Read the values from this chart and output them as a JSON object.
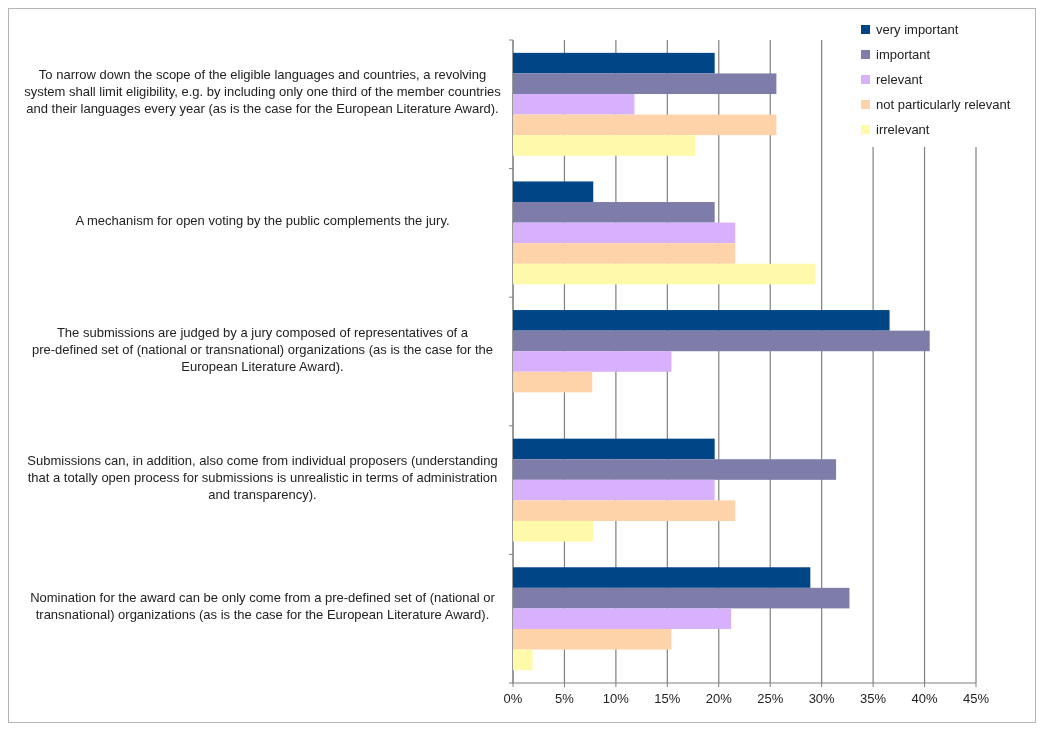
{
  "chart_data": {
    "type": "bar",
    "orientation": "horizontal",
    "categories": [
      "To narrow down the scope of the eligible languages and countries, a revolving system shall limit eligibility, e.g. by including only one third of the member countries and their languages every year (as is the case for the European Literature Award).",
      "A mechanism for open voting by the public complements the jury.",
      "The submissions are judged by a jury composed of representatives of a pre-defined set of (national or transnational) organizations (as is the case for the European Literature Award).",
      "Submissions can, in addition, also come from individual proposers (understanding that a totally open process for submissions is unrealistic in terms of administration and transparency).",
      "Nomination for the award can be only come from a pre-defined set of (national or transnational) organizations (as is the case for the European Literature Award)."
    ],
    "series": [
      {
        "name": "very important",
        "color": "#004586",
        "values": [
          19.6,
          7.8,
          36.6,
          19.6,
          28.9
        ]
      },
      {
        "name": "important",
        "color": "#7e7ca8",
        "values": [
          25.6,
          19.6,
          40.5,
          31.4,
          32.7
        ]
      },
      {
        "name": "relevant",
        "color": "#d7b1fb",
        "values": [
          11.8,
          21.6,
          15.4,
          19.6,
          21.2
        ]
      },
      {
        "name": "not particularly relevant",
        "color": "#ffd3a9",
        "values": [
          25.6,
          21.6,
          7.7,
          21.6,
          15.4
        ]
      },
      {
        "name": "irrelevant",
        "color": "#fffaa9",
        "values": [
          17.7,
          29.4,
          0,
          7.8,
          1.9
        ]
      }
    ],
    "xlim": [
      0,
      45
    ],
    "xticks": [
      {
        "value": 0,
        "label": "0%"
      },
      {
        "value": 5,
        "label": "5%"
      },
      {
        "value": 10,
        "label": "10%"
      },
      {
        "value": 15,
        "label": "15%"
      },
      {
        "value": 20,
        "label": "20%"
      },
      {
        "value": 25,
        "label": "25%"
      },
      {
        "value": 30,
        "label": "30%"
      },
      {
        "value": 35,
        "label": "35%"
      },
      {
        "value": 40,
        "label": "40%"
      },
      {
        "value": 45,
        "label": "45%"
      }
    ],
    "grid": "x",
    "legend": "top right"
  }
}
